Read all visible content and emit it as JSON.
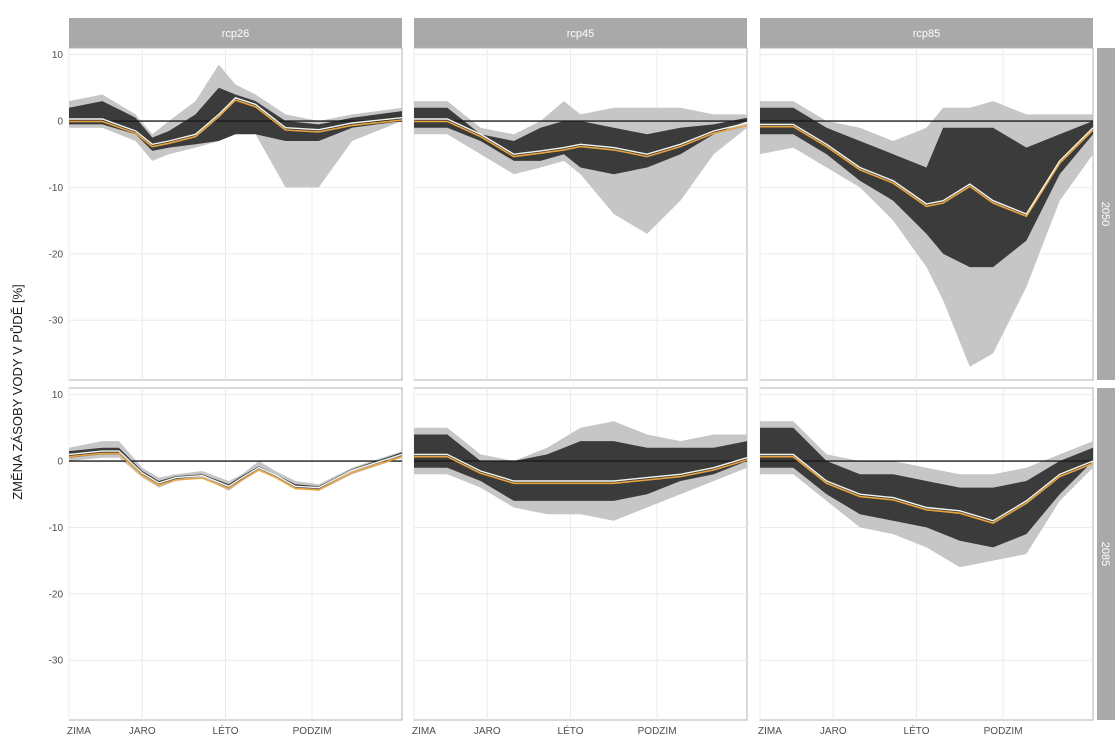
{
  "chart_data": {
    "type": "area",
    "xlabel": "",
    "ylabel": "ZMĚNA ZÁSOBY VODY V PŮDĚ [%]",
    "x_ticks": [
      "ZIMA",
      "JARO",
      "LÉTO",
      "PODZIM"
    ],
    "x_tick_positions": [
      0,
      0.22,
      0.47,
      0.73
    ],
    "ylim": [
      -39,
      11
    ],
    "y_ticks": [
      10,
      0,
      -10,
      -20,
      -30
    ],
    "reference_line": 0,
    "grid": true,
    "columns": [
      "rcp26",
      "rcp45",
      "rcp85"
    ],
    "rows": [
      "2050",
      "2085"
    ],
    "colors": {
      "outer_band": "#c6c6c6",
      "inner_band": "#3b3b3b",
      "median_line": "#f5f5f0",
      "mean_line": "#e8a33d",
      "strip": "#a9a9a9",
      "zero_line": "#1a1a1a"
    },
    "panels": [
      {
        "column": "rcp26",
        "row": "2050",
        "x": [
          0,
          0.1,
          0.2,
          0.25,
          0.3,
          0.38,
          0.45,
          0.5,
          0.56,
          0.65,
          0.75,
          0.85,
          1
        ],
        "outer_lo": [
          -1,
          -1,
          -3,
          -6,
          -5,
          -4,
          -3,
          -1,
          -2,
          -10,
          -10,
          -3,
          0
        ],
        "inner_lo": [
          -0.5,
          -0.5,
          -2,
          -4.5,
          -4,
          -3.5,
          -3,
          -2,
          -2,
          -3,
          -3,
          -1,
          0
        ],
        "inner_hi": [
          2,
          3,
          0.5,
          -2.5,
          -1.5,
          1,
          5,
          4,
          3,
          0,
          -0.5,
          0.5,
          1.5
        ],
        "outer_hi": [
          3,
          4,
          1,
          -2,
          0,
          3,
          8.5,
          5.5,
          4,
          1,
          0,
          1,
          2
        ],
        "median": [
          0.3,
          0.3,
          -1.5,
          -3.5,
          -3,
          -2,
          1,
          3.5,
          2.5,
          -1,
          -1.3,
          -0.3,
          0.5
        ]
      },
      {
        "column": "rcp45",
        "row": "2050",
        "x": [
          0,
          0.1,
          0.2,
          0.3,
          0.38,
          0.45,
          0.5,
          0.6,
          0.7,
          0.8,
          0.9,
          1
        ],
        "outer_lo": [
          -2,
          -2,
          -5,
          -8,
          -7,
          -6,
          -8,
          -14,
          -17,
          -12,
          -5,
          -1
        ],
        "inner_lo": [
          -1,
          -1,
          -3,
          -6,
          -6,
          -5,
          -7,
          -8,
          -7,
          -5,
          -2,
          0
        ],
        "inner_hi": [
          2,
          2,
          -2,
          -3,
          -1,
          0,
          0,
          -1,
          -2,
          -1,
          -0.5,
          0.5
        ],
        "outer_hi": [
          3,
          3,
          -1,
          -2,
          0,
          3,
          1,
          2,
          2,
          2,
          1,
          1
        ],
        "median": [
          0.3,
          0.3,
          -2,
          -5,
          -4.5,
          -4,
          -3.5,
          -4,
          -5,
          -3.5,
          -1.5,
          -0.3
        ]
      },
      {
        "column": "rcp85",
        "row": "2050",
        "x": [
          0,
          0.1,
          0.2,
          0.3,
          0.4,
          0.5,
          0.55,
          0.63,
          0.7,
          0.8,
          0.9,
          1
        ],
        "outer_lo": [
          -5,
          -4,
          -7,
          -10,
          -15,
          -22,
          -27,
          -37,
          -35,
          -25,
          -12,
          -5
        ],
        "inner_lo": [
          -2,
          -2,
          -5,
          -9,
          -12,
          -17,
          -20,
          -22,
          -22,
          -18,
          -8,
          -2
        ],
        "inner_hi": [
          2,
          2,
          -1,
          -3,
          -5,
          -7,
          -1,
          -1,
          -1,
          -4,
          -2,
          0
        ],
        "outer_hi": [
          3,
          3,
          0,
          -1,
          -3,
          -1,
          2,
          2,
          3,
          1,
          1,
          1
        ],
        "median": [
          -0.5,
          -0.5,
          -3.5,
          -7,
          -9,
          -12.5,
          -12,
          -9.5,
          -12,
          -14,
          -6,
          -1
        ]
      },
      {
        "column": "rcp26",
        "row": "2085",
        "x": [
          0,
          0.1,
          0.15,
          0.22,
          0.27,
          0.32,
          0.4,
          0.48,
          0.52,
          0.57,
          0.62,
          0.68,
          0.75,
          0.85,
          1
        ],
        "outer_lo": [
          0,
          0.5,
          0.5,
          -2.5,
          -4,
          -3,
          -2.5,
          -4.5,
          -3,
          -1,
          -2,
          -4,
          -4.5,
          -2,
          0.5
        ],
        "inner_lo": [
          0.5,
          1,
          1,
          -2,
          -3.5,
          -2.7,
          -2.3,
          -4,
          -2.7,
          -1.2,
          -2.3,
          -4,
          -4.2,
          -1.5,
          0.8
        ],
        "inner_hi": [
          1.5,
          2,
          2,
          -1.5,
          -3,
          -2.3,
          -2,
          -3.5,
          -2.2,
          -0.8,
          -2,
          -3.5,
          -3.8,
          -1.2,
          1.3
        ],
        "outer_hi": [
          2,
          3,
          3,
          -1,
          -2.5,
          -2,
          -1.5,
          -3,
          -2,
          0,
          -1.5,
          -3,
          -3.5,
          -1,
          1.5
        ],
        "median": [
          1,
          1.5,
          1.5,
          -1.8,
          -3.3,
          -2.5,
          -2.2,
          -3.8,
          -2.5,
          -1,
          -2.1,
          -3.8,
          -4,
          -1.4,
          1
        ]
      },
      {
        "column": "rcp45",
        "row": "2085",
        "x": [
          0,
          0.1,
          0.2,
          0.3,
          0.4,
          0.5,
          0.6,
          0.7,
          0.8,
          0.9,
          1
        ],
        "outer_lo": [
          -2,
          -2,
          -4,
          -7,
          -8,
          -8,
          -9,
          -7,
          -5,
          -3,
          -1
        ],
        "inner_lo": [
          -1,
          -1,
          -3,
          -6,
          -6,
          -6,
          -6,
          -5,
          -3,
          -2,
          0
        ],
        "inner_hi": [
          4,
          4,
          0,
          0,
          1,
          3,
          3,
          2,
          2,
          2,
          3
        ],
        "outer_hi": [
          5,
          5,
          1,
          0,
          2,
          5,
          6,
          4,
          3,
          4,
          4
        ],
        "median": [
          1,
          1,
          -1.5,
          -3,
          -3,
          -3,
          -3,
          -2.5,
          -2,
          -1,
          0.5
        ]
      },
      {
        "column": "rcp85",
        "row": "2085",
        "x": [
          0,
          0.1,
          0.2,
          0.3,
          0.4,
          0.5,
          0.6,
          0.7,
          0.8,
          0.9,
          1
        ],
        "outer_lo": [
          -2,
          -2,
          -6,
          -10,
          -11,
          -13,
          -16,
          -15,
          -14,
          -6,
          -1
        ],
        "inner_lo": [
          -1,
          -1,
          -5,
          -8,
          -9,
          -10,
          -12,
          -13,
          -11,
          -5,
          0
        ],
        "inner_hi": [
          5,
          5,
          0,
          -2,
          -2,
          -3,
          -4,
          -4,
          -3,
          0,
          2
        ],
        "outer_hi": [
          6,
          6,
          1,
          0,
          0,
          -1,
          -2,
          -2,
          -1,
          1,
          3
        ],
        "median": [
          1,
          1,
          -3,
          -5,
          -5.5,
          -7,
          -7.5,
          -9,
          -6,
          -2,
          0
        ]
      }
    ]
  }
}
